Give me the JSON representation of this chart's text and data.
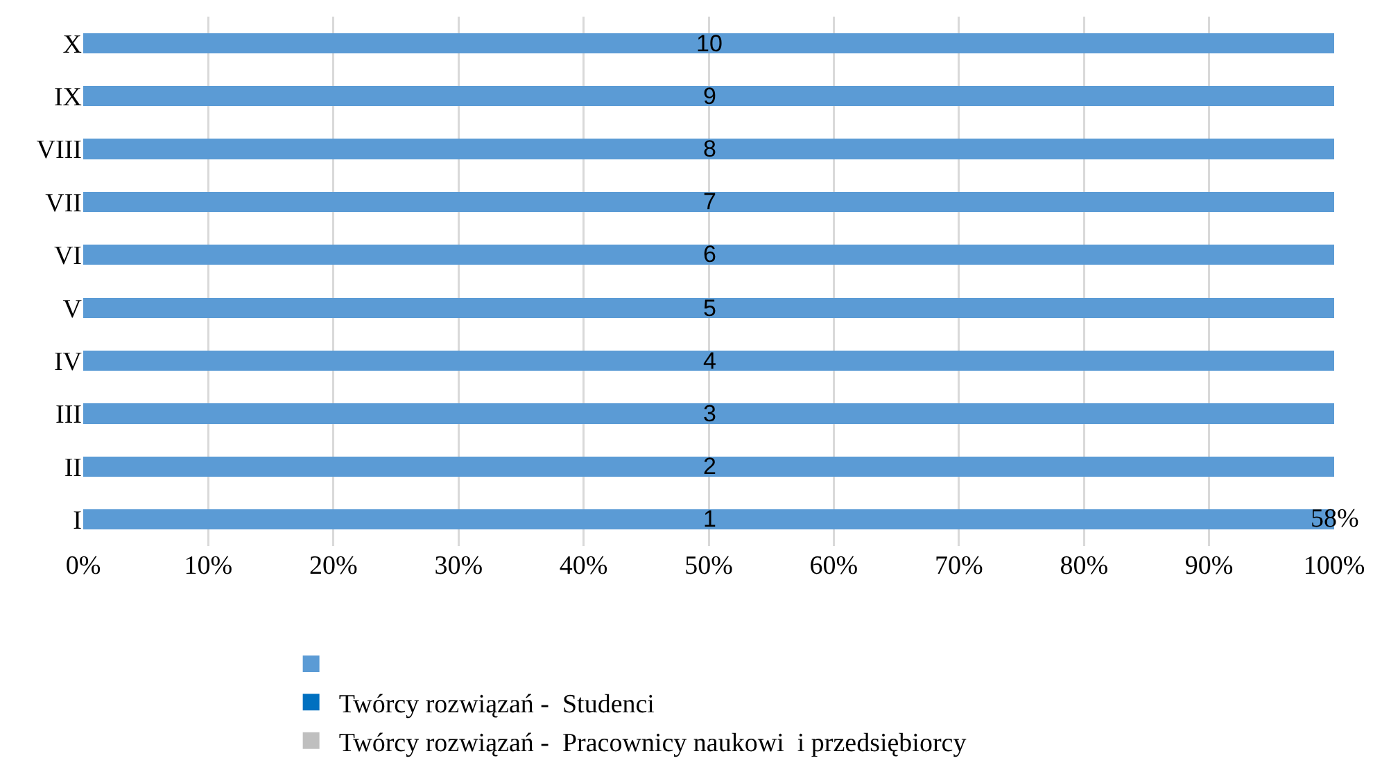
{
  "chart_data": {
    "type": "bar",
    "orientation": "horizontal",
    "stacked": true,
    "categories": [
      "X",
      "IX",
      "VIII",
      "VII",
      "VI",
      "V",
      "IV",
      "III",
      "II",
      "I"
    ],
    "series": [
      {
        "color": "#5b9bd5",
        "values": [
          100,
          100,
          100,
          100,
          100,
          100,
          100,
          100,
          100,
          100
        ]
      },
      {
        "name": "Twórcy rozwiązań -  Studenci",
        "color": "#0070c0",
        "values": [
          0,
          0,
          0,
          0,
          0,
          0,
          0,
          0,
          0,
          0
        ]
      },
      {
        "name": "Twórcy rozwiązań -  Pracownicy naukowi  i przedsiębiorcy",
        "color": "#bfbfbf",
        "values": [
          0,
          0,
          0,
          0,
          0,
          0,
          0,
          0,
          0,
          0
        ]
      }
    ],
    "xlim": [
      0,
      100
    ],
    "xticks": [
      {
        "value": 0,
        "label": "0%"
      },
      {
        "value": 10,
        "label": "10%"
      },
      {
        "value": 20,
        "label": "20%"
      },
      {
        "value": 30,
        "label": "30%"
      },
      {
        "value": 40,
        "label": "40%"
      },
      {
        "value": 50,
        "label": "50%"
      },
      {
        "value": 60,
        "label": "60%"
      },
      {
        "value": 70,
        "label": "70%"
      },
      {
        "value": 80,
        "label": "80%"
      },
      {
        "value": 90,
        "label": "90%"
      },
      {
        "value": 100,
        "label": "100%"
      }
    ],
    "annotations": [
      "10",
      "9",
      "8",
      "7",
      "6",
      "5",
      "4",
      "3",
      "2",
      "1",
      {
        "text": "58%",
        "x": 100,
        "y": "I"
      }
    ],
    "grid": "x",
    "legend": "bottom"
  }
}
